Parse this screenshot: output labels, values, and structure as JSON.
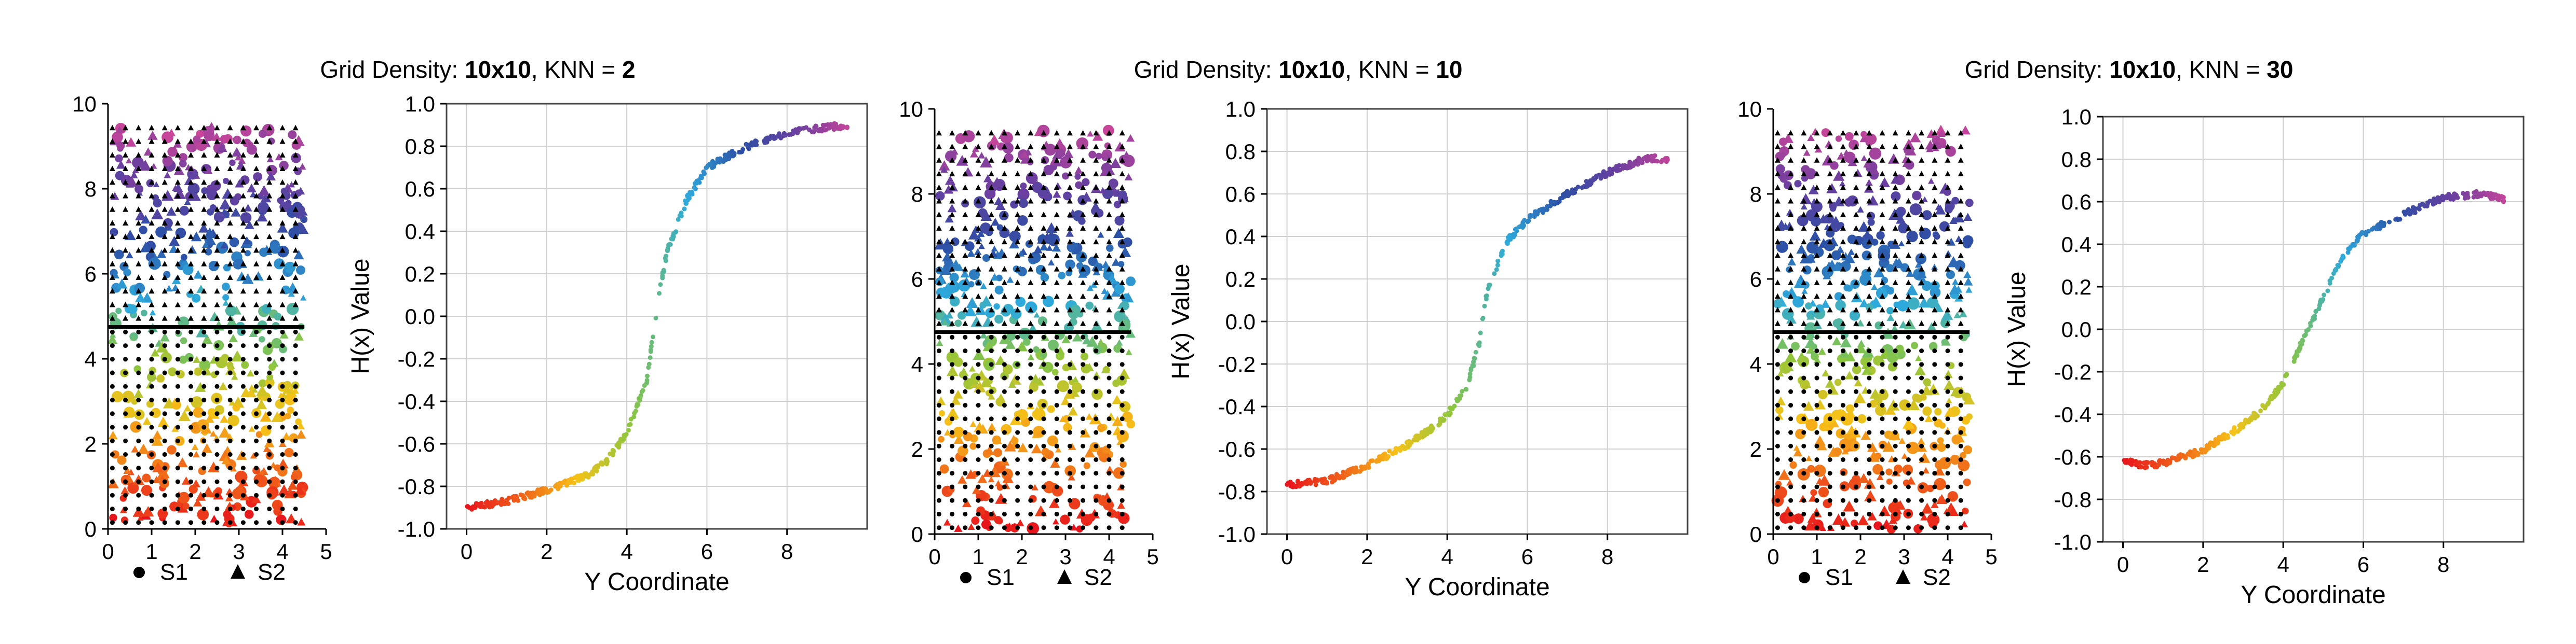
{
  "panels": [
    {
      "title_prefix": "Grid Density: ",
      "density": "10x10",
      "title_mid": ", KNN = ",
      "knn": "2",
      "legend": {
        "s1_label": "S1",
        "s2_label": "S2"
      }
    },
    {
      "title_prefix": "Grid Density: ",
      "density": "10x10",
      "title_mid": ", KNN = ",
      "knn": "10",
      "legend": {
        "s1_label": "S1",
        "s2_label": "S2"
      }
    },
    {
      "title_prefix": "Grid Density: ",
      "density": "10x10",
      "title_mid": ", KNN = ",
      "knn": "30",
      "legend": {
        "s1_label": "S1",
        "s2_label": "S2"
      }
    }
  ],
  "colors": {
    "boundary_line": "#000000",
    "grid": "#d0d0d0",
    "colormap": [
      "#e8141c",
      "#f0621a",
      "#f6c218",
      "#8cc63f",
      "#2eaadc",
      "#2d4fa5",
      "#6a3fa0",
      "#c8459a"
    ]
  },
  "chart_data": [
    {
      "type": "scatter",
      "title": "Grid Density: 10x10, KNN = 2",
      "scatter": {
        "xlim": [
          0,
          5
        ],
        "ylim": [
          0,
          10
        ],
        "xticks": [
          0,
          1,
          2,
          3,
          4,
          5
        ],
        "yticks": [
          0,
          2,
          4,
          6,
          8,
          10
        ],
        "boundary_y": 4.75,
        "legend": [
          "S1",
          "S2"
        ]
      },
      "line": {
        "xlabel": "Y Coordinate",
        "ylabel": "H(x) Value",
        "xlim": [
          -0.5,
          10
        ],
        "ylim": [
          -1.0,
          1.0
        ],
        "xticks": [
          0,
          2,
          4,
          6,
          8
        ],
        "yticks": [
          -1.0,
          -0.8,
          -0.6,
          -0.4,
          -0.2,
          0.0,
          0.2,
          0.4,
          0.6,
          0.8,
          1.0
        ],
        "grid": true,
        "curve": [
          [
            0,
            -0.9
          ],
          [
            1,
            -0.87
          ],
          [
            2,
            -0.82
          ],
          [
            3,
            -0.75
          ],
          [
            3.5,
            -0.68
          ],
          [
            4,
            -0.55
          ],
          [
            4.5,
            -0.3
          ],
          [
            4.8,
            0.1
          ],
          [
            5,
            0.3
          ],
          [
            5.5,
            0.55
          ],
          [
            6,
            0.7
          ],
          [
            7,
            0.8
          ],
          [
            8,
            0.86
          ],
          [
            9,
            0.89
          ],
          [
            9.5,
            0.9
          ]
        ]
      }
    },
    {
      "type": "scatter",
      "title": "Grid Density: 10x10, KNN = 10",
      "scatter": {
        "xlim": [
          0,
          5
        ],
        "ylim": [
          0,
          10
        ],
        "xticks": [
          0,
          1,
          2,
          3,
          4,
          5
        ],
        "yticks": [
          0,
          2,
          4,
          6,
          8,
          10
        ],
        "boundary_y": 4.75,
        "legend": [
          "S1",
          "S2"
        ]
      },
      "line": {
        "xlabel": "Y Coordinate",
        "ylabel": "H(x) Value",
        "xlim": [
          -0.5,
          10
        ],
        "ylim": [
          -1.0,
          1.0
        ],
        "xticks": [
          0,
          2,
          4,
          6,
          8
        ],
        "yticks": [
          -1.0,
          -0.8,
          -0.6,
          -0.4,
          -0.2,
          0.0,
          0.2,
          0.4,
          0.6,
          0.8,
          1.0
        ],
        "grid": true,
        "curve": [
          [
            0,
            -0.77
          ],
          [
            1,
            -0.75
          ],
          [
            2,
            -0.68
          ],
          [
            3,
            -0.58
          ],
          [
            3.5,
            -0.52
          ],
          [
            4,
            -0.44
          ],
          [
            4.5,
            -0.3
          ],
          [
            4.8,
            -0.1
          ],
          [
            5,
            0.15
          ],
          [
            5.5,
            0.38
          ],
          [
            6,
            0.48
          ],
          [
            7,
            0.6
          ],
          [
            8,
            0.7
          ],
          [
            9,
            0.77
          ],
          [
            9.5,
            0.76
          ]
        ]
      }
    },
    {
      "type": "scatter",
      "title": "Grid Density: 10x10, KNN = 30",
      "scatter": {
        "xlim": [
          0,
          5
        ],
        "ylim": [
          0,
          10
        ],
        "xticks": [
          0,
          1,
          2,
          3,
          4,
          5
        ],
        "yticks": [
          0,
          2,
          4,
          6,
          8,
          10
        ],
        "boundary_y": 4.75,
        "legend": [
          "S1",
          "S2"
        ]
      },
      "line": {
        "xlabel": "Y Coordinate",
        "ylabel": "H(x) Value",
        "xlim": [
          -0.5,
          10
        ],
        "ylim": [
          -1.0,
          1.0
        ],
        "xticks": [
          0,
          2,
          4,
          6,
          8
        ],
        "yticks": [
          -1.0,
          -0.8,
          -0.6,
          -0.4,
          -0.2,
          0.0,
          0.2,
          0.4,
          0.6,
          0.8,
          1.0
        ],
        "grid": true,
        "curve": [
          [
            0,
            -0.62
          ],
          [
            0.5,
            -0.64
          ],
          [
            1,
            -0.63
          ],
          [
            2,
            -0.57
          ],
          [
            3,
            -0.45
          ],
          [
            3.5,
            -0.37
          ],
          [
            4,
            -0.25
          ],
          [
            4.5,
            -0.05
          ],
          [
            5,
            0.15
          ],
          [
            5.5,
            0.35
          ],
          [
            6,
            0.45
          ],
          [
            7,
            0.54
          ],
          [
            8,
            0.62
          ],
          [
            9,
            0.64
          ],
          [
            9.5,
            0.61
          ]
        ]
      }
    }
  ]
}
